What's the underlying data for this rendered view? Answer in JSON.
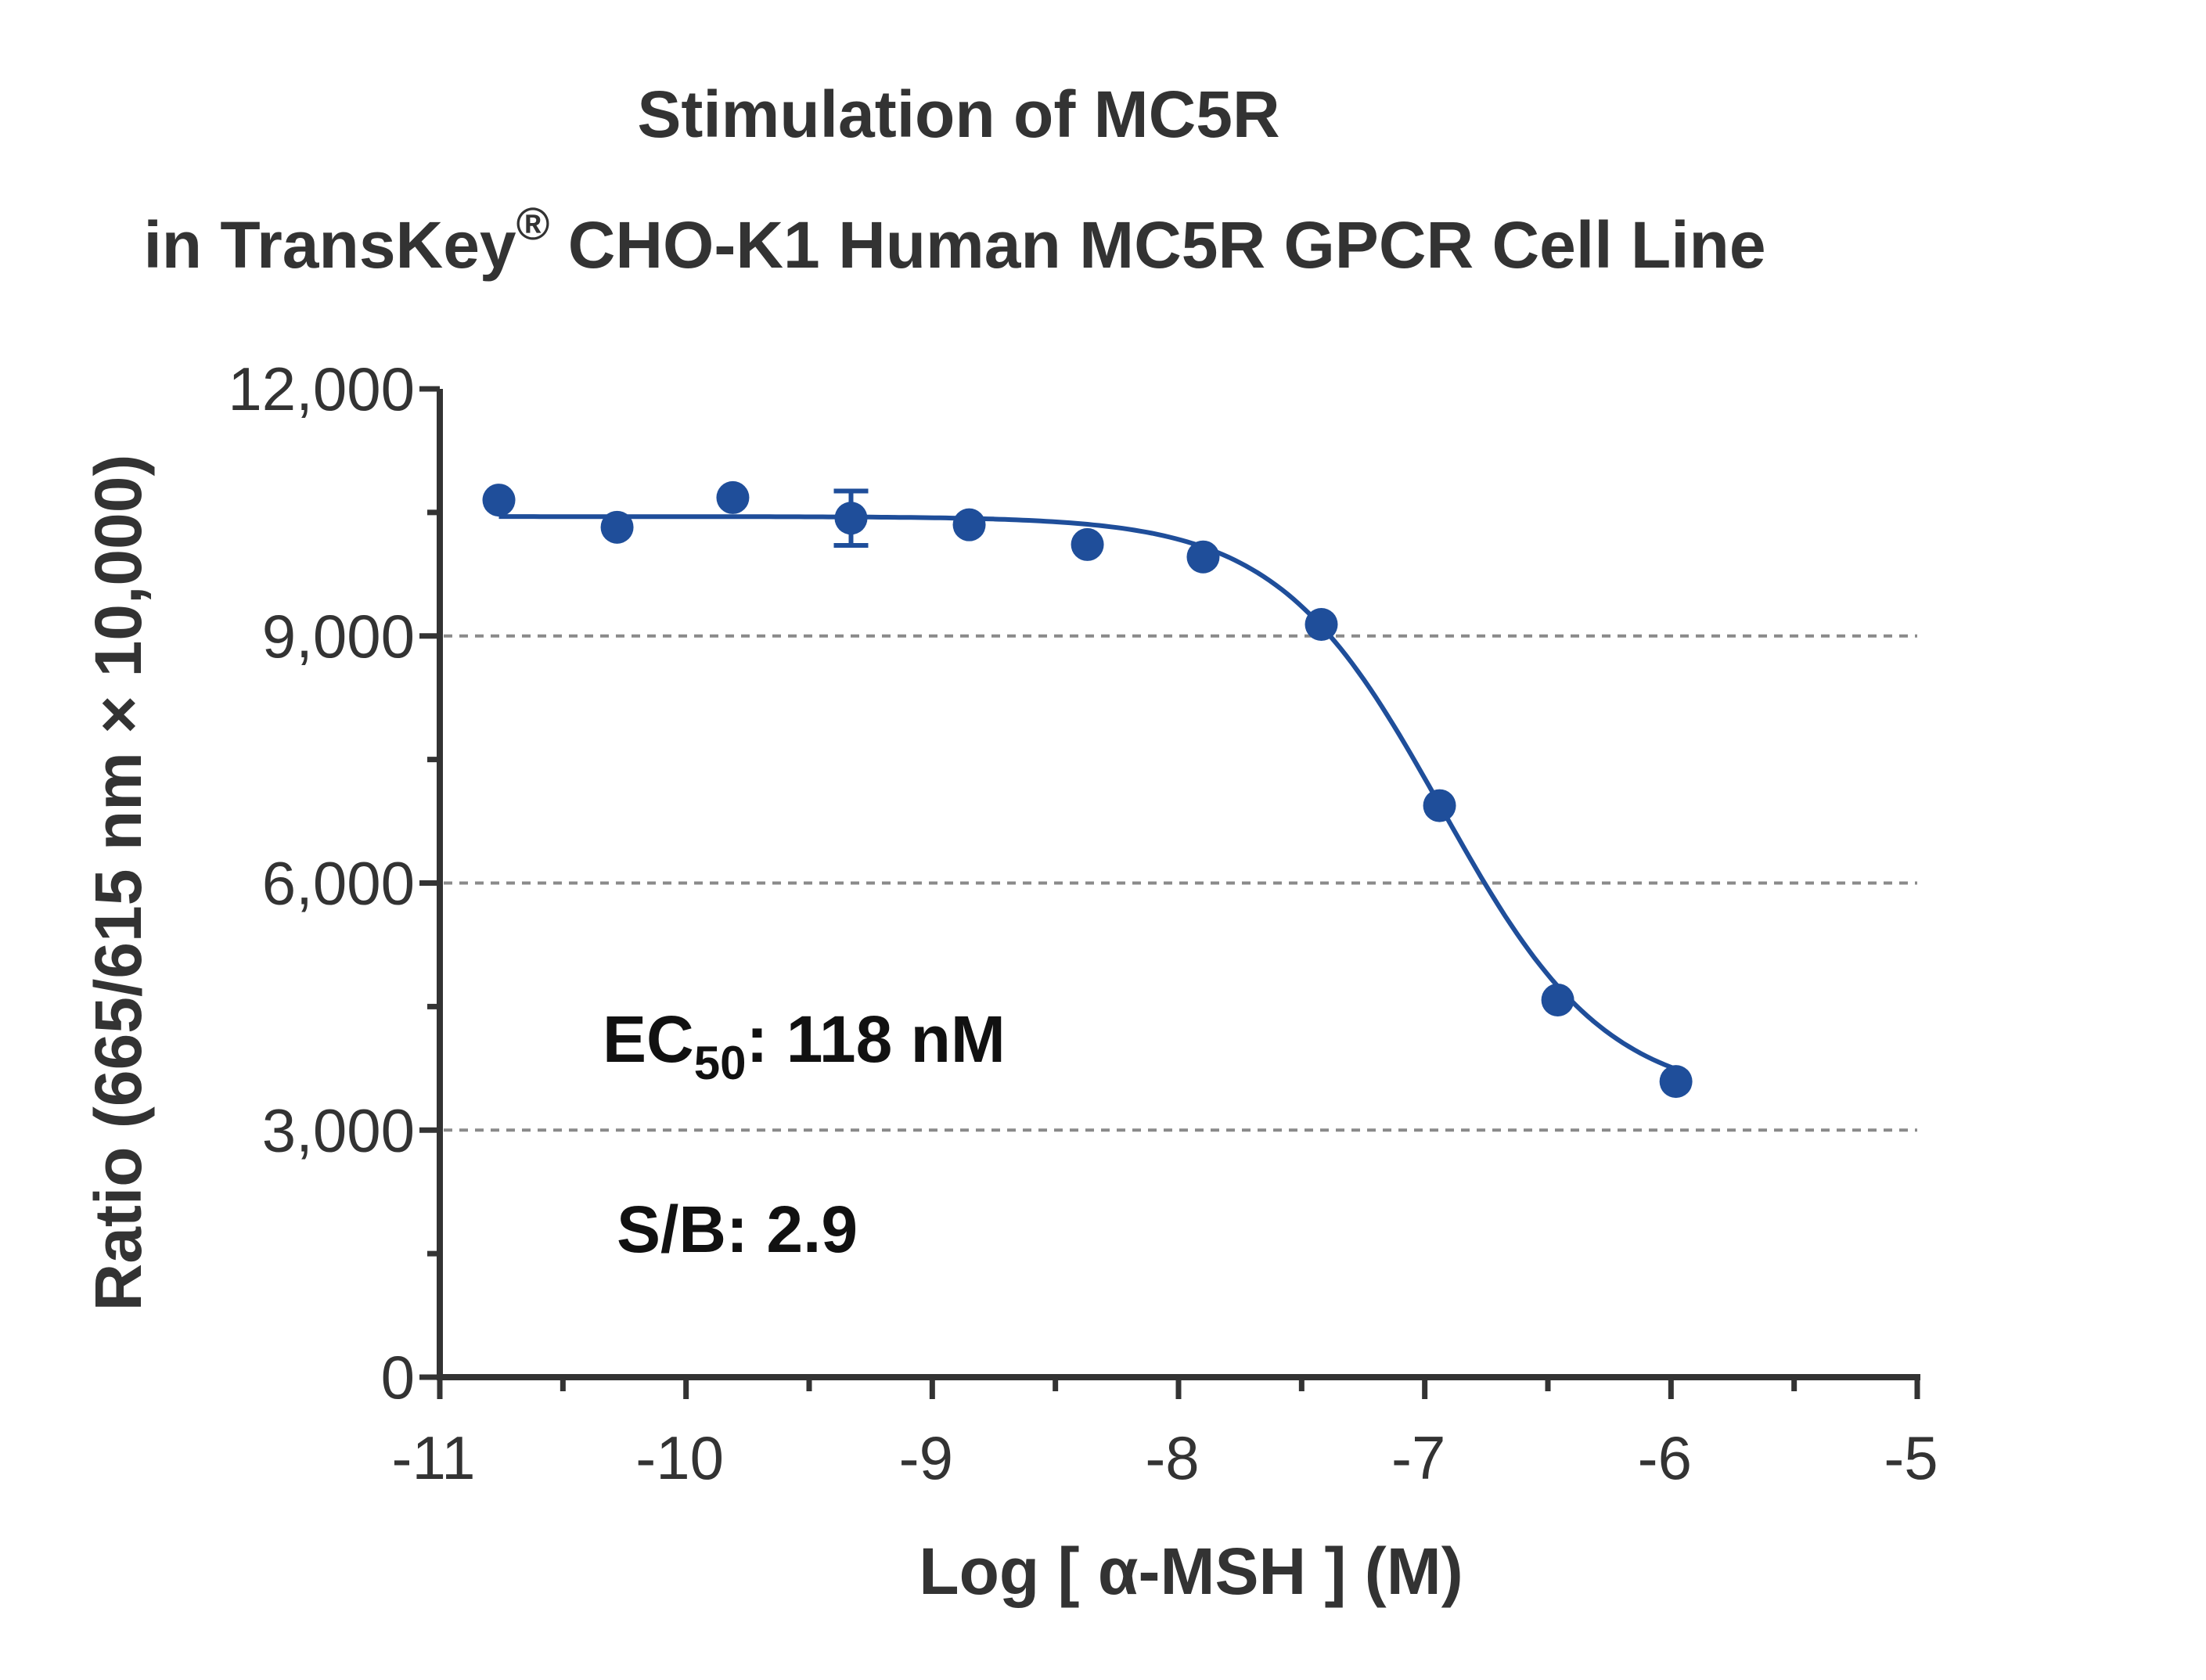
{
  "chart_data": {
    "type": "scatter",
    "title_line1": "Stimulation of  MC5R",
    "title_line2_prefix": "in TransKey",
    "title_line2_reg": "®",
    "title_line2_suffix": " CHO-K1 Human MC5R GPCR Cell Line",
    "xlabel": "Log [ α-MSH ]  (M)",
    "ylabel": "Ratio (665/615 nm × 10,000)",
    "xlim": [
      -11,
      -5
    ],
    "ylim": [
      0,
      12000
    ],
    "x_ticks": [
      -11,
      -10,
      -9,
      -8,
      -7,
      -6,
      -5
    ],
    "x_tick_labels": [
      "-11",
      "-10",
      "-9",
      "-8",
      "-7",
      "-6",
      "-5"
    ],
    "y_ticks": [
      0,
      3000,
      6000,
      9000,
      12000
    ],
    "y_tick_labels": [
      "0",
      "3,000",
      "6,000",
      "9,000",
      "12,000"
    ],
    "gridlines_y": [
      3000,
      6000,
      9000
    ],
    "series": [
      {
        "color": "#1f4e9a",
        "points": [
          {
            "x": -10.76,
            "y": 10650
          },
          {
            "x": -10.28,
            "y": 10320
          },
          {
            "x": -9.81,
            "y": 10680
          },
          {
            "x": -9.33,
            "y": 10430,
            "err": 330
          },
          {
            "x": -8.85,
            "y": 10350
          },
          {
            "x": -8.37,
            "y": 10110
          },
          {
            "x": -7.9,
            "y": 9960
          },
          {
            "x": -7.42,
            "y": 9140
          },
          {
            "x": -6.94,
            "y": 6940
          },
          {
            "x": -6.46,
            "y": 4580
          },
          {
            "x": -5.98,
            "y": 3590
          }
        ],
        "fit": {
          "model": "4PL",
          "top": 10450,
          "bottom": 3350,
          "log_ec50": -6.93,
          "hill": 1.3
        }
      }
    ],
    "annotations": {
      "ec50_prefix": "EC",
      "ec50_sub": "50",
      "ec50_value": ": 118 nM",
      "sb": "S/B: 2.9"
    },
    "grid": "dashed horizontal at 3,000 / 6,000 / 9,000"
  }
}
